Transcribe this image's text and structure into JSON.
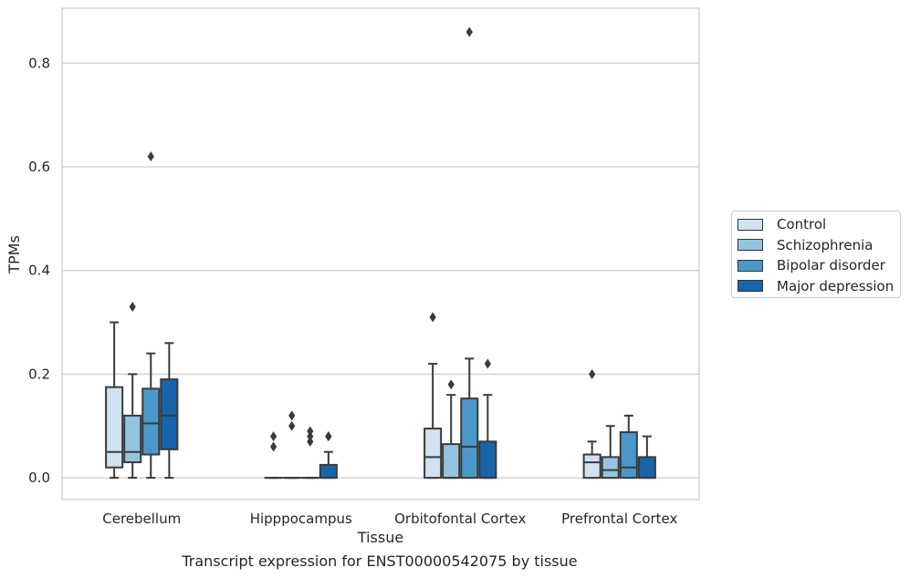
{
  "caption": "Transcript expression for ENST00000542075 by tissue",
  "chart_data": {
    "type": "box",
    "xlabel": "Tissue",
    "ylabel": "TPMs",
    "ylim": [
      -0.042,
      0.906
    ],
    "yticks": [
      "0.0",
      "0.2",
      "0.4",
      "0.6",
      "0.8"
    ],
    "grid": "horizontal",
    "legend_position": "right",
    "categories": [
      "Cerebellum",
      "Hipppocampus",
      "Orbitofontal Cortex",
      "Prefrontal Cortex"
    ],
    "series": [
      {
        "name": "Control",
        "color": "#d0e1f2",
        "boxes": [
          {
            "whisker_low": 0.0,
            "q1": 0.02,
            "median": 0.05,
            "q3": 0.175,
            "whisker_high": 0.3,
            "outliers": []
          },
          {
            "whisker_low": 0.0,
            "q1": 0.0,
            "median": 0.0,
            "q3": 0.0,
            "whisker_high": 0.0,
            "outliers": [
              0.06,
              0.08
            ]
          },
          {
            "whisker_low": 0.0,
            "q1": 0.0,
            "median": 0.04,
            "q3": 0.095,
            "whisker_high": 0.22,
            "outliers": [
              0.31
            ]
          },
          {
            "whisker_low": 0.0,
            "q1": 0.0,
            "median": 0.03,
            "q3": 0.045,
            "whisker_high": 0.07,
            "outliers": [
              0.2
            ]
          }
        ]
      },
      {
        "name": "Schizophrenia",
        "color": "#94c4df",
        "boxes": [
          {
            "whisker_low": 0.0,
            "q1": 0.03,
            "median": 0.05,
            "q3": 0.12,
            "whisker_high": 0.2,
            "outliers": [
              0.33
            ]
          },
          {
            "whisker_low": 0.0,
            "q1": 0.0,
            "median": 0.0,
            "q3": 0.0,
            "whisker_high": 0.0,
            "outliers": [
              0.1,
              0.12
            ]
          },
          {
            "whisker_low": 0.0,
            "q1": 0.0,
            "median": 0.0,
            "q3": 0.065,
            "whisker_high": 0.16,
            "outliers": [
              0.18
            ]
          },
          {
            "whisker_low": 0.0,
            "q1": 0.0,
            "median": 0.015,
            "q3": 0.04,
            "whisker_high": 0.1,
            "outliers": []
          }
        ]
      },
      {
        "name": "Bipolar disorder",
        "color": "#4a98c9",
        "boxes": [
          {
            "whisker_low": 0.0,
            "q1": 0.045,
            "median": 0.105,
            "q3": 0.172,
            "whisker_high": 0.24,
            "outliers": [
              0.62
            ]
          },
          {
            "whisker_low": 0.0,
            "q1": 0.0,
            "median": 0.0,
            "q3": 0.0,
            "whisker_high": 0.0,
            "outliers": [
              0.07,
              0.08,
              0.09
            ]
          },
          {
            "whisker_low": 0.0,
            "q1": 0.0,
            "median": 0.06,
            "q3": 0.153,
            "whisker_high": 0.23,
            "outliers": [
              0.86
            ]
          },
          {
            "whisker_low": 0.0,
            "q1": 0.0,
            "median": 0.02,
            "q3": 0.088,
            "whisker_high": 0.12,
            "outliers": []
          }
        ]
      },
      {
        "name": "Major depression",
        "color": "#1764ab",
        "boxes": [
          {
            "whisker_low": 0.0,
            "q1": 0.055,
            "median": 0.12,
            "q3": 0.19,
            "whisker_high": 0.26,
            "outliers": []
          },
          {
            "whisker_low": 0.0,
            "q1": 0.0,
            "median": 0.0,
            "q3": 0.025,
            "whisker_high": 0.05,
            "outliers": [
              0.08,
              0.08
            ]
          },
          {
            "whisker_low": 0.0,
            "q1": 0.0,
            "median": 0.0,
            "q3": 0.07,
            "whisker_high": 0.16,
            "outliers": [
              0.22
            ]
          },
          {
            "whisker_low": 0.0,
            "q1": 0.0,
            "median": 0.0,
            "q3": 0.04,
            "whisker_high": 0.08,
            "outliers": []
          }
        ]
      }
    ]
  }
}
